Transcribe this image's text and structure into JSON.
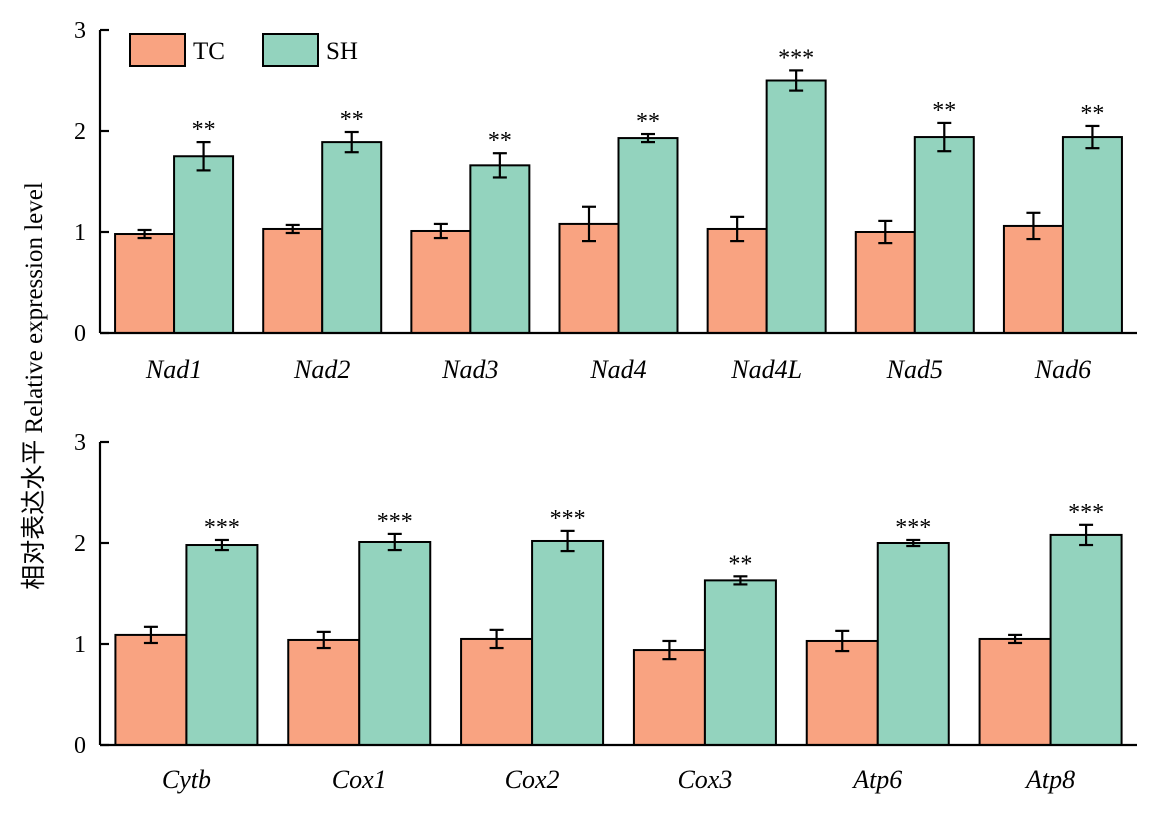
{
  "ylabel": "相对表达水平 Relative expression level",
  "legend": {
    "position": "top-left",
    "items": [
      "TC",
      "SH"
    ]
  },
  "colors": {
    "TC": "#F9A381",
    "SH": "#93D3BE",
    "stroke": "#000000"
  },
  "chart_data": [
    {
      "type": "bar",
      "categories": [
        "Nad1",
        "Nad2",
        "Nad3",
        "Nad4",
        "Nad4L",
        "Nad5",
        "Nad6"
      ],
      "ylim": [
        0,
        3
      ],
      "yticks": [
        "0",
        "1",
        "2",
        "3"
      ],
      "series": [
        {
          "name": "TC",
          "values": [
            0.98,
            1.03,
            1.01,
            1.08,
            1.03,
            1.0,
            1.06
          ],
          "errors": [
            0.04,
            0.04,
            0.07,
            0.17,
            0.12,
            0.11,
            0.13
          ]
        },
        {
          "name": "SH",
          "values": [
            1.75,
            1.89,
            1.66,
            1.93,
            2.5,
            1.94,
            1.94
          ],
          "errors": [
            0.14,
            0.1,
            0.12,
            0.04,
            0.1,
            0.14,
            0.11
          ]
        }
      ],
      "significance": [
        "**",
        "**",
        "**",
        "**",
        "***",
        "**",
        "**"
      ]
    },
    {
      "type": "bar",
      "categories": [
        "Cytb",
        "Cox1",
        "Cox2",
        "Cox3",
        "Atp6",
        "Atp8"
      ],
      "ylim": [
        0,
        3
      ],
      "yticks": [
        "0",
        "1",
        "2",
        "3"
      ],
      "series": [
        {
          "name": "TC",
          "values": [
            1.09,
            1.04,
            1.05,
            0.94,
            1.03,
            1.05
          ],
          "errors": [
            0.08,
            0.08,
            0.09,
            0.09,
            0.1,
            0.04
          ]
        },
        {
          "name": "SH",
          "values": [
            1.98,
            2.01,
            2.02,
            1.63,
            2.0,
            2.08
          ],
          "errors": [
            0.05,
            0.08,
            0.1,
            0.04,
            0.03,
            0.1
          ]
        }
      ],
      "significance": [
        "***",
        "***",
        "***",
        "**",
        "***",
        "***"
      ]
    }
  ]
}
